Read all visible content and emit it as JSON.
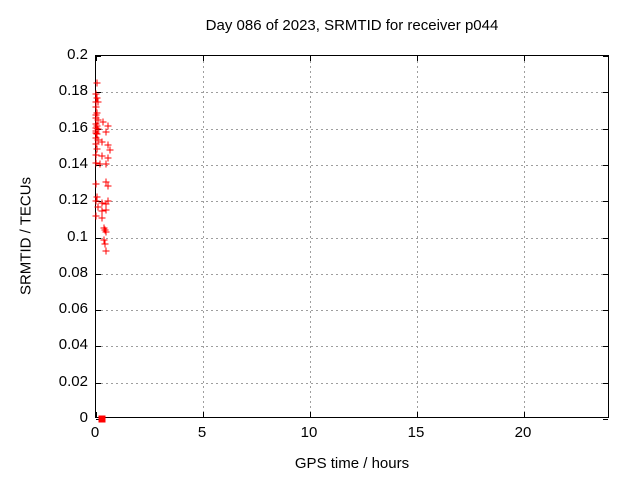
{
  "chart_data": {
    "type": "scatter",
    "title": "Day 086 of 2023, SRMTID for receiver p044",
    "xlabel": "GPS time / hours",
    "ylabel": "SRMTID / TECUs",
    "xlim": [
      0,
      24
    ],
    "ylim": [
      0,
      0.2
    ],
    "grid": true,
    "legend": "none",
    "colors": {
      "marker": "#ff0000",
      "grid": "#9e9e9e",
      "axis": "#000000",
      "background": "#ffffff",
      "text": "#000000"
    },
    "xticks": [
      {
        "v": 0,
        "label": "0"
      },
      {
        "v": 5,
        "label": "5"
      },
      {
        "v": 10,
        "label": "10"
      },
      {
        "v": 15,
        "label": "15"
      },
      {
        "v": 20,
        "label": "20"
      }
    ],
    "yticks": [
      {
        "v": 0,
        "label": "0"
      },
      {
        "v": 0.02,
        "label": "0.02"
      },
      {
        "v": 0.04,
        "label": "0.04"
      },
      {
        "v": 0.06,
        "label": "0.06"
      },
      {
        "v": 0.08,
        "label": "0.08"
      },
      {
        "v": 0.1,
        "label": "0.1"
      },
      {
        "v": 0.12,
        "label": "0.12"
      },
      {
        "v": 0.14,
        "label": "0.14"
      },
      {
        "v": 0.16,
        "label": "0.16"
      },
      {
        "v": 0.18,
        "label": "0.18"
      },
      {
        "v": 0.2,
        "label": "0.2"
      }
    ],
    "series": [
      {
        "marker": "plus",
        "color": "#ff0000",
        "points": [
          [
            0.05,
            0.185
          ],
          [
            0.0,
            0.179
          ],
          [
            0.05,
            0.177
          ],
          [
            0.0,
            0.1747
          ],
          [
            0.08,
            0.1747
          ],
          [
            0.0,
            0.172
          ],
          [
            0.05,
            0.1686
          ],
          [
            0.0,
            0.1675
          ],
          [
            0.0,
            0.1659
          ],
          [
            0.09,
            0.1648
          ],
          [
            0.33,
            0.1636
          ],
          [
            0.0,
            0.1625
          ],
          [
            0.05,
            0.1614
          ],
          [
            0.56,
            0.1614
          ],
          [
            0.0,
            0.1603
          ],
          [
            0.09,
            0.1598
          ],
          [
            0.0,
            0.1587
          ],
          [
            0.47,
            0.1581
          ],
          [
            0.0,
            0.1576
          ],
          [
            0.05,
            0.157
          ],
          [
            0.0,
            0.1548
          ],
          [
            0.09,
            0.1537
          ],
          [
            0.28,
            0.1526
          ],
          [
            0.0,
            0.1515
          ],
          [
            0.56,
            0.151
          ],
          [
            0.05,
            0.1488
          ],
          [
            0.66,
            0.1482
          ],
          [
            0.0,
            0.1455
          ],
          [
            0.28,
            0.1449
          ],
          [
            0.56,
            0.1438
          ],
          [
            0.0,
            0.141
          ],
          [
            0.19,
            0.1405
          ],
          [
            0.47,
            0.1405
          ],
          [
            0.47,
            0.1306
          ],
          [
            0.0,
            0.1295
          ],
          [
            0.56,
            0.1284
          ],
          [
            0.05,
            0.1223
          ],
          [
            0.0,
            0.1201
          ],
          [
            0.56,
            0.1201
          ],
          [
            0.28,
            0.119
          ],
          [
            0.47,
            0.1185
          ],
          [
            0.09,
            0.1168
          ],
          [
            0.47,
            0.1152
          ],
          [
            0.28,
            0.1146
          ],
          [
            0.0,
            0.1118
          ],
          [
            0.26,
            0.1107
          ],
          [
            0.37,
            0.1052
          ],
          [
            0.42,
            0.1041
          ],
          [
            0.47,
            0.103
          ],
          [
            0.37,
            0.0986
          ],
          [
            0.42,
            0.0964
          ],
          [
            0.47,
            0.0925
          ]
        ]
      },
      {
        "marker": "filled-square",
        "color": "#ff0000",
        "points": [
          [
            0.26,
            0.0
          ]
        ]
      }
    ]
  }
}
